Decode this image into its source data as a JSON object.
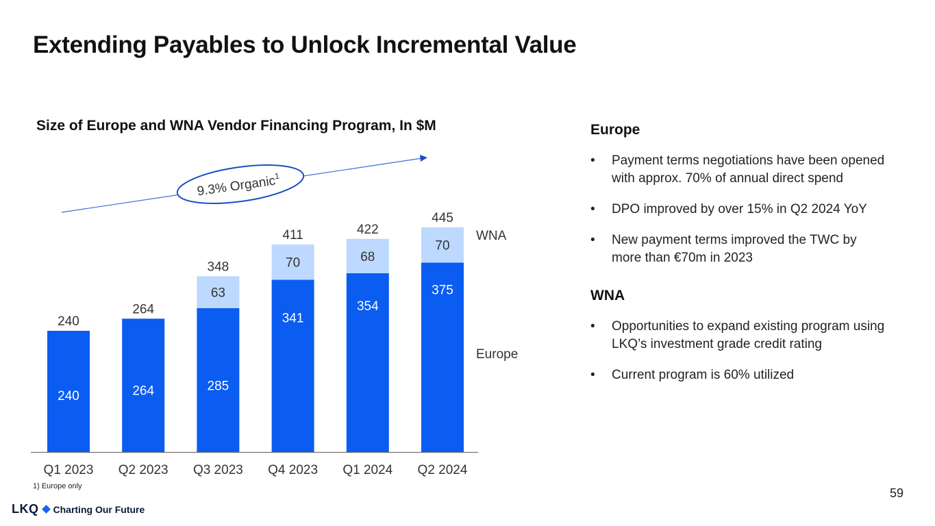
{
  "title": "Extending Payables to Unlock Incremental Value",
  "chart_data": {
    "type": "bar",
    "stacked": true,
    "title": "Size of Europe and WNA Vendor Financing Program, In $M",
    "categories": [
      "Q1 2023",
      "Q2 2023",
      "Q3 2023",
      "Q4 2023",
      "Q1 2024",
      "Q2 2024"
    ],
    "series": [
      {
        "name": "Europe",
        "values": [
          240,
          264,
          285,
          341,
          354,
          375
        ],
        "color": "#0b5cf0"
      },
      {
        "name": "WNA",
        "values": [
          0,
          0,
          63,
          70,
          68,
          70
        ],
        "color": "#bdd9ff"
      }
    ],
    "totals": [
      240,
      264,
      348,
      411,
      422,
      445
    ],
    "ylim": [
      0,
      500
    ],
    "grid": false,
    "legend": "right",
    "annotation": {
      "text": "9.3% Organic",
      "superscript": "1"
    }
  },
  "footnote": "1) Europe only",
  "page_number": "59",
  "logo": {
    "mark": "LKQ",
    "tagline": "Charting Our Future"
  },
  "europe": {
    "heading": "Europe",
    "bullets": [
      "Payment terms negotiations have been opened with approx. 70% of annual direct spend",
      "DPO improved by over 15% in Q2 2024 YoY",
      "New payment terms improved the TWC by more than €70m in 2023"
    ]
  },
  "wna": {
    "heading": "WNA",
    "bullets": [
      "Opportunities to expand existing program using LKQ’s investment grade credit rating",
      "Current program is 60% utilized"
    ]
  }
}
